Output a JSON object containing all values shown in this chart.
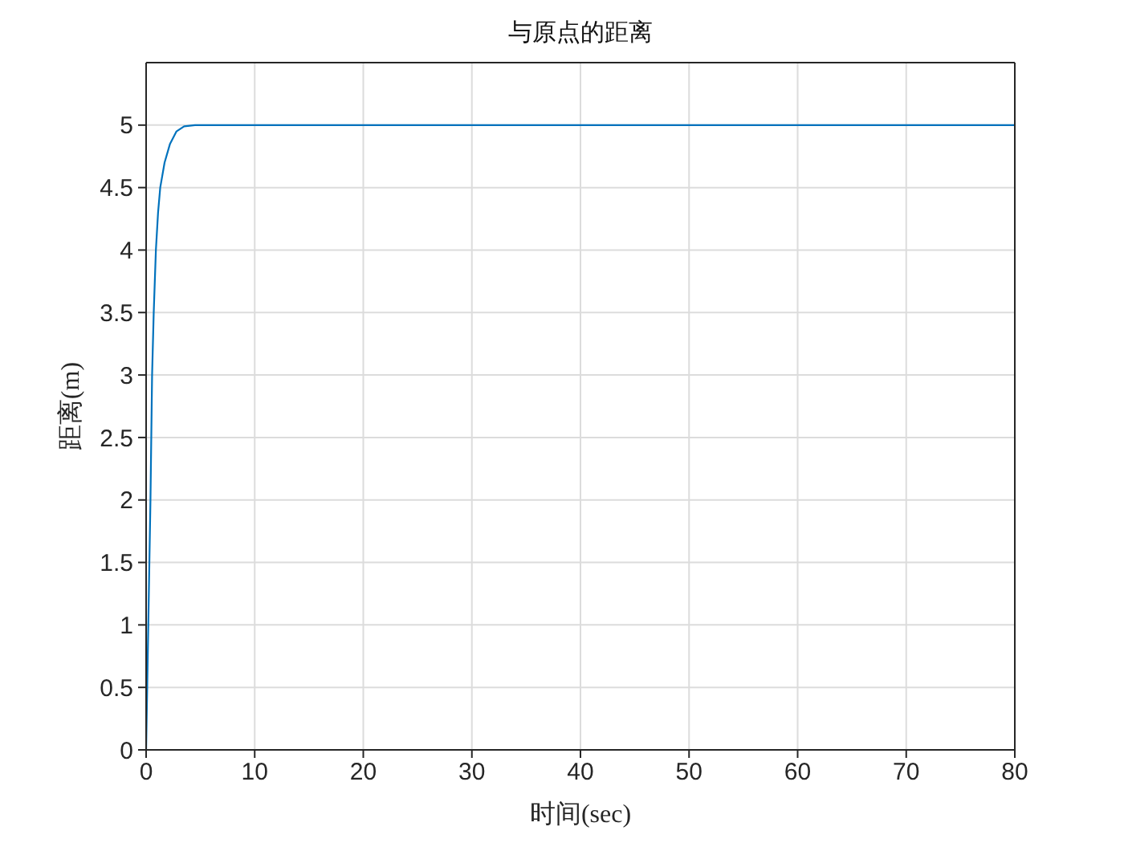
{
  "chart_data": {
    "type": "line",
    "title": "与原点的距离",
    "xlabel": "时间(sec)",
    "ylabel": "距离(m)",
    "x": [
      0,
      0.1,
      0.2,
      0.3,
      0.4,
      0.55,
      0.7,
      0.9,
      1.1,
      1.3,
      1.7,
      2.2,
      2.8,
      3.5,
      4.5,
      80
    ],
    "series": [
      {
        "color": "#0072bd",
        "values": [
          0,
          0.5,
          1,
          1.5,
          2,
          3,
          3.5,
          4,
          4.3,
          4.5,
          4.7,
          4.85,
          4.95,
          4.99,
          5,
          5
        ]
      }
    ],
    "xlim": [
      0,
      80
    ],
    "xticks": [
      0,
      10,
      20,
      30,
      40,
      50,
      60,
      70,
      80
    ],
    "ylim": [
      0,
      5.5
    ],
    "yticks": [
      0,
      0.5,
      1,
      1.5,
      2,
      2.5,
      3,
      3.5,
      4,
      4.5,
      5
    ],
    "grid": true,
    "marker": "none",
    "line_style": "solid"
  }
}
